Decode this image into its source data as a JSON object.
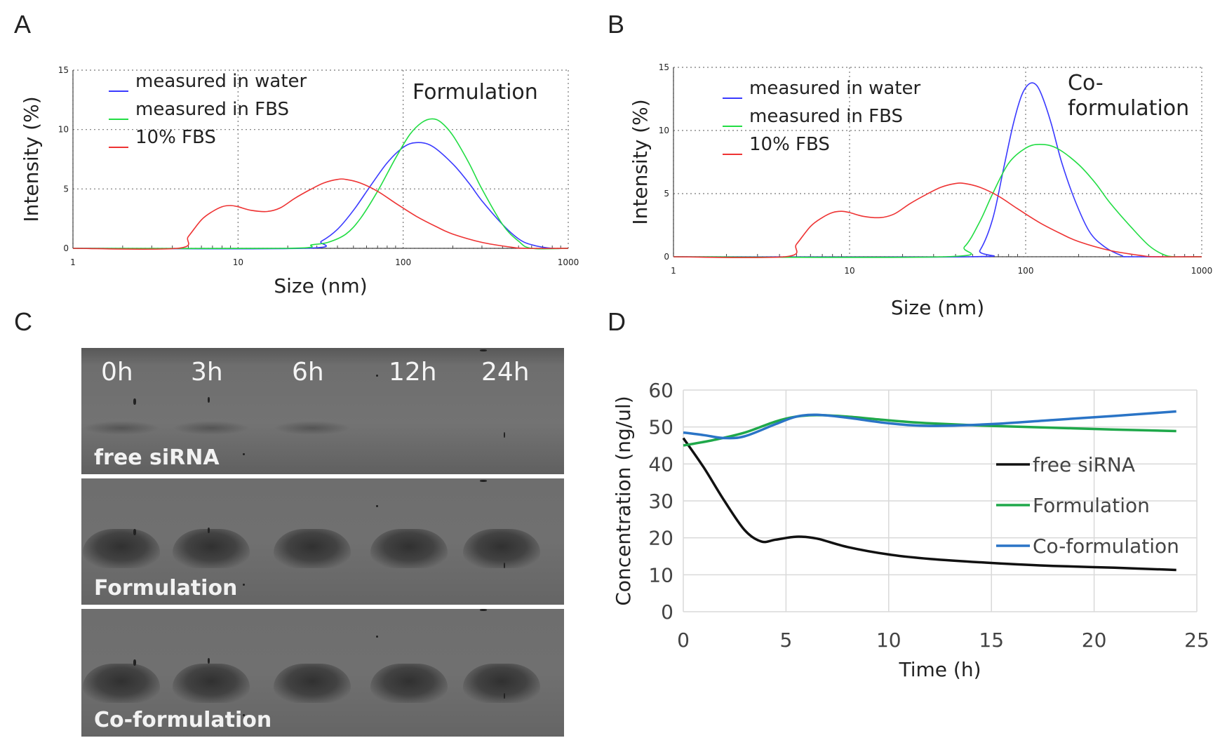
{
  "panels": {
    "a": "A",
    "b": "B",
    "c": "C",
    "d": "D"
  },
  "colors": {
    "water": "#3a3aff",
    "fbs_measured": "#22dd44",
    "fbs10": "#ee3333",
    "free_siRNA": "#111111",
    "formulation": "#1fa84a",
    "co_formulation": "#2a74c6"
  },
  "chart_data": [
    {
      "type": "line",
      "panel": "A",
      "title": "Formulation",
      "xlabel": "Size (nm)",
      "ylabel": "Intensity (%)",
      "xscale": "log",
      "xlim": [
        1,
        1000
      ],
      "ylim": [
        0,
        15
      ],
      "xticks": [
        "1",
        "10",
        "100",
        "1000"
      ],
      "yticks": [
        "0",
        "5",
        "10",
        "15"
      ],
      "grid": "dotted",
      "legend_position": "top-left",
      "series": [
        {
          "name": "measured in water",
          "color": "#3a3aff",
          "x": [
            1,
            25,
            32,
            40,
            50,
            63,
            80,
            100,
            120,
            150,
            200,
            250,
            300,
            400,
            500,
            600,
            800,
            1000
          ],
          "y": [
            0,
            0,
            0.6,
            1.6,
            3.2,
            5.2,
            7.2,
            8.5,
            8.9,
            8.6,
            7.1,
            5.5,
            4.0,
            2.0,
            0.8,
            0.3,
            0,
            0
          ]
        },
        {
          "name": "measured in FBS",
          "color": "#22dd44",
          "x": [
            1,
            20,
            28,
            35,
            45,
            55,
            70,
            90,
            110,
            130,
            150,
            170,
            200,
            250,
            300,
            400,
            500,
            600,
            1000
          ],
          "y": [
            0,
            0,
            0.3,
            0.5,
            1.2,
            2.5,
            4.8,
            7.6,
            9.6,
            10.6,
            10.9,
            10.6,
            9.5,
            7.2,
            5.0,
            2.0,
            0.6,
            0,
            0
          ]
        },
        {
          "name": "10% FBS",
          "color": "#ee3333",
          "x": [
            1,
            4.3,
            5,
            6,
            7,
            8,
            9,
            10,
            12,
            15,
            18,
            22,
            27,
            33,
            40,
            45,
            55,
            70,
            90,
            120,
            160,
            200,
            300,
            450,
            550,
            1000
          ],
          "y": [
            0,
            0,
            1.0,
            2.4,
            3.1,
            3.5,
            3.6,
            3.5,
            3.2,
            3.1,
            3.4,
            4.2,
            4.9,
            5.5,
            5.8,
            5.8,
            5.5,
            4.8,
            3.8,
            2.7,
            1.8,
            1.2,
            0.5,
            0.1,
            0,
            0
          ]
        }
      ]
    },
    {
      "type": "line",
      "panel": "B",
      "title": "Co-formulation",
      "title_lines": [
        "Co-",
        "formulation"
      ],
      "xlabel": "Size (nm)",
      "ylabel": "Intensity (%)",
      "xscale": "log",
      "xlim": [
        1,
        1000
      ],
      "ylim": [
        0,
        15
      ],
      "xticks": [
        "1",
        "10",
        "100",
        "1000"
      ],
      "yticks": [
        "0",
        "5",
        "10",
        "15"
      ],
      "grid": "dotted",
      "legend_position": "top-left",
      "series": [
        {
          "name": "measured in water",
          "color": "#3a3aff",
          "x": [
            1,
            48,
            55,
            65,
            75,
            85,
            95,
            105,
            115,
            125,
            140,
            160,
            190,
            230,
            280,
            350,
            400,
            1000
          ],
          "y": [
            0,
            0,
            0.5,
            3.0,
            7.0,
            10.5,
            12.8,
            13.7,
            13.6,
            12.6,
            10.5,
            7.5,
            4.5,
            2.0,
            0.8,
            0.1,
            0,
            0
          ]
        },
        {
          "name": "measured in FBS",
          "color": "#22dd44",
          "x": [
            1,
            35,
            45,
            55,
            65,
            80,
            100,
            120,
            150,
            200,
            250,
            300,
            400,
            500,
            600,
            700,
            1000
          ],
          "y": [
            0,
            0,
            0.8,
            2.8,
            5.0,
            7.4,
            8.6,
            8.9,
            8.6,
            7.3,
            5.8,
            4.3,
            2.3,
            0.9,
            0.2,
            0,
            0
          ]
        },
        {
          "name": "10% FBS",
          "color": "#ee3333",
          "x": [
            1,
            4.3,
            5,
            6,
            7,
            8,
            9,
            10,
            12,
            15,
            18,
            22,
            27,
            33,
            40,
            45,
            55,
            70,
            90,
            120,
            160,
            200,
            300,
            450,
            550,
            1000
          ],
          "y": [
            0,
            0,
            1.0,
            2.4,
            3.1,
            3.5,
            3.6,
            3.5,
            3.2,
            3.1,
            3.4,
            4.2,
            4.9,
            5.5,
            5.8,
            5.8,
            5.5,
            4.8,
            3.8,
            2.7,
            1.8,
            1.2,
            0.5,
            0.1,
            0,
            0
          ]
        }
      ]
    },
    {
      "type": "line",
      "panel": "D",
      "title": "",
      "xlabel": "Time (h)",
      "ylabel": "Concentration (ng/ul)",
      "xlim": [
        0,
        25
      ],
      "ylim": [
        0,
        60
      ],
      "xticks": [
        "0",
        "5",
        "10",
        "15",
        "20",
        "25"
      ],
      "yticks": [
        "0",
        "10",
        "20",
        "30",
        "40",
        "50",
        "60"
      ],
      "grid": "solid",
      "legend_position": "right",
      "series": [
        {
          "name": "free siRNA",
          "color": "#111111",
          "x": [
            0,
            1,
            2,
            3,
            3.8,
            4.5,
            5.5,
            6.5,
            8,
            10,
            12,
            15,
            18,
            21,
            24
          ],
          "y": [
            47,
            39,
            30,
            22,
            19,
            19.5,
            20.3,
            19.8,
            17.5,
            15.5,
            14.3,
            13.2,
            12.4,
            11.9,
            11.3
          ]
        },
        {
          "name": "Formulation",
          "color": "#1fa84a",
          "x": [
            0,
            1.5,
            3,
            4.5,
            5.5,
            6.5,
            8,
            10,
            12,
            15,
            18,
            21,
            24
          ],
          "y": [
            45,
            46.5,
            48.5,
            51.5,
            52.8,
            53.2,
            52.8,
            51.8,
            51.0,
            50.3,
            49.8,
            49.3,
            48.9
          ]
        },
        {
          "name": "Co-formulation",
          "color": "#2a74c6",
          "x": [
            0,
            1,
            2,
            3,
            4.5,
            5.5,
            6.5,
            8,
            10,
            12,
            15,
            18,
            21,
            24
          ],
          "y": [
            48.5,
            47.8,
            47.0,
            47.5,
            50.8,
            52.8,
            53.3,
            52.5,
            51.0,
            50.3,
            50.8,
            51.9,
            53.0,
            54.2
          ]
        }
      ]
    }
  ],
  "gel": {
    "lanes": [
      "0h",
      "3h",
      "6h",
      "12h",
      "24h"
    ],
    "strips": [
      {
        "name": "free siRNA",
        "band_intensity": [
          1,
          1,
          1,
          0,
          0
        ]
      },
      {
        "name": "Formulation",
        "band_intensity": [
          1,
          1,
          1,
          1,
          1
        ]
      },
      {
        "name": "Co-formulation",
        "band_intensity": [
          1,
          1,
          1,
          1,
          1
        ]
      }
    ]
  }
}
